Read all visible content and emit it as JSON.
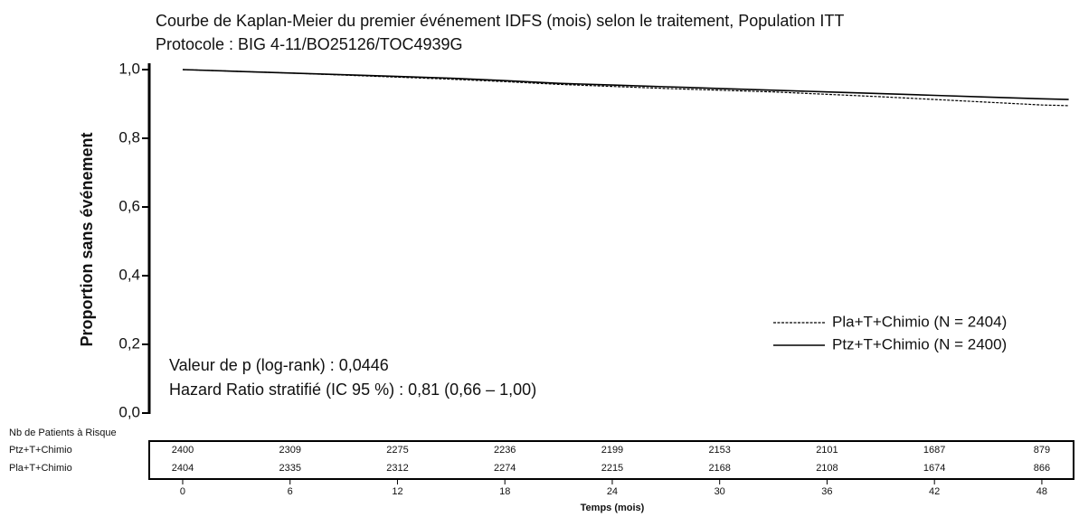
{
  "chart_data": {
    "type": "line",
    "title": "Courbe de Kaplan-Meier du premier événement IDFS (mois) selon le traitement, Population ITT",
    "subtitle": "Protocole : BIG 4-11/BO25126/TOC4939G",
    "y_label": "Proportion sans événement",
    "x_label": "Temps (mois)",
    "x": [
      0,
      3,
      6,
      9,
      12,
      15,
      18,
      21,
      24,
      27,
      30,
      33,
      36,
      39,
      42,
      45,
      48,
      49.5
    ],
    "series": [
      {
        "name": "Pla+T+Chimio (N = 2404)",
        "color": "#000000",
        "line_style": "dashed",
        "values": [
          1.0,
          0.995,
          0.99,
          0.984,
          0.978,
          0.972,
          0.965,
          0.957,
          0.951,
          0.945,
          0.94,
          0.935,
          0.928,
          0.921,
          0.913,
          0.905,
          0.897,
          0.895
        ]
      },
      {
        "name": "Ptz+T+Chimio (N = 2400)",
        "color": "#000000",
        "line_style": "solid",
        "values": [
          1.0,
          0.995,
          0.99,
          0.985,
          0.98,
          0.975,
          0.968,
          0.96,
          0.955,
          0.95,
          0.945,
          0.94,
          0.935,
          0.93,
          0.925,
          0.92,
          0.915,
          0.913
        ]
      }
    ],
    "xlim": [
      -2,
      50
    ],
    "xticks": [
      0,
      6,
      12,
      18,
      24,
      30,
      36,
      42,
      48
    ],
    "ylim": [
      0,
      1
    ],
    "yticks": [
      {
        "value": 0,
        "label": "0,0"
      },
      {
        "value": 0.2,
        "label": "0,2"
      },
      {
        "value": 0.4,
        "label": "0,4"
      },
      {
        "value": 0.6,
        "label": "0,6"
      },
      {
        "value": 0.8,
        "label": "0,8"
      },
      {
        "value": 1,
        "label": "1,0"
      }
    ],
    "legend": "lower right",
    "annotations": [
      "Valeur de p (log-rank) : 0,0446",
      "Hazard Ratio stratifié (IC 95 %) : 0,81 (0,66 – 1,00)"
    ],
    "risk_table": {
      "title": "Nb de Patients à Risque",
      "rows": [
        {
          "label": "Ptz+T+Chimio",
          "values": [
            2400,
            2309,
            2275,
            2236,
            2199,
            2153,
            2101,
            1687,
            879
          ]
        },
        {
          "label": "Pla+T+Chimio",
          "values": [
            2404,
            2335,
            2312,
            2274,
            2215,
            2168,
            2108,
            1674,
            866
          ]
        }
      ]
    }
  }
}
